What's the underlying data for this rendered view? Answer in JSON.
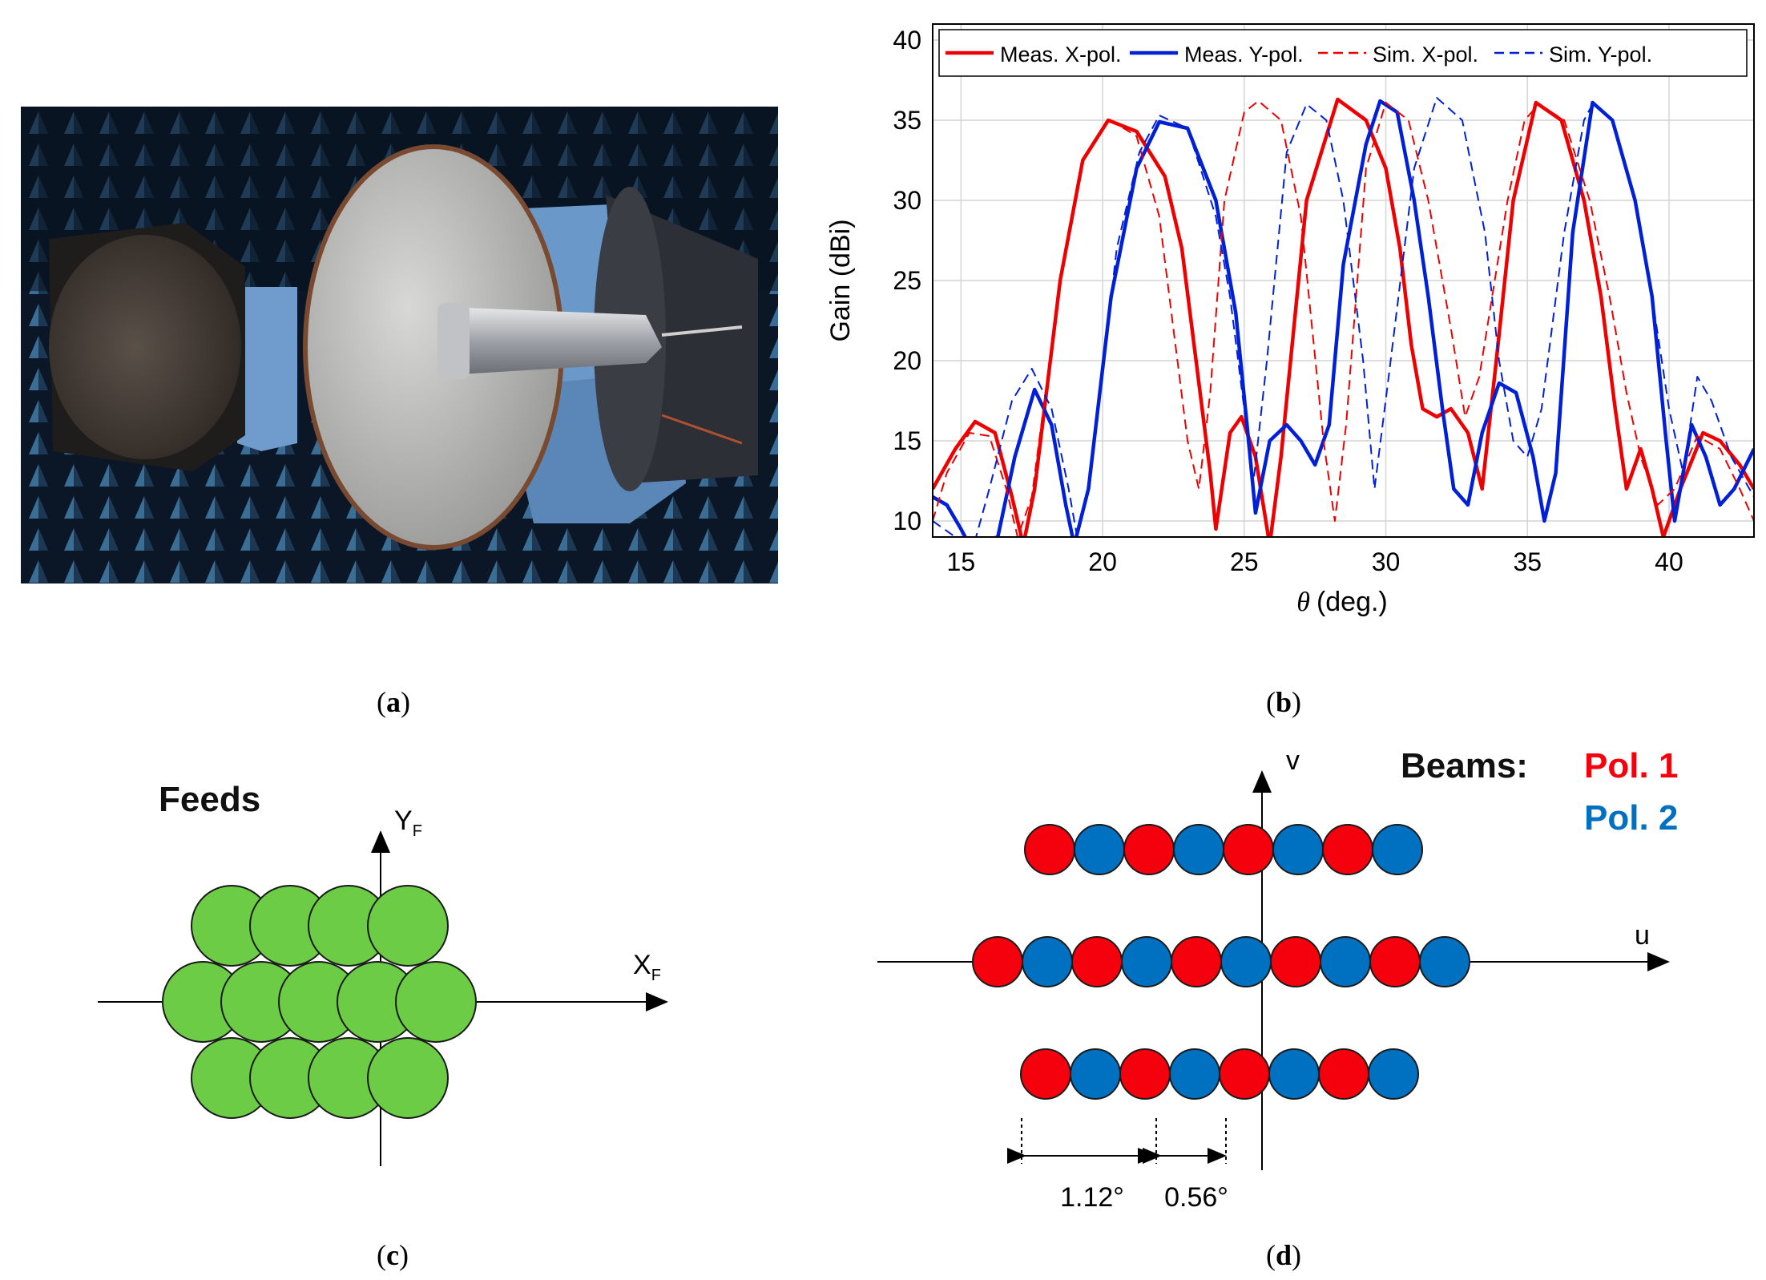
{
  "captions": {
    "a": "a",
    "b": "b",
    "c": "c",
    "d": "d"
  },
  "panel_c": {
    "title": "Feeds",
    "x_axis": "X",
    "x_sub": "F",
    "y_axis": "Y",
    "y_sub": "F",
    "feed_color": "#6dcc46"
  },
  "panel_d": {
    "legend_title": "Beams:",
    "pol1_label": "Pol. 1",
    "pol2_label": "Pol. 2",
    "u_axis": "u",
    "v_axis": "v",
    "spacing_1": "1.12°",
    "spacing_2": "0.56°",
    "pol1_color": "#f5000d",
    "pol2_color": "#0070c0"
  },
  "chart_data": {
    "type": "line",
    "xlabel_symbol": "θ",
    "xlabel_unit": "(deg.)",
    "ylabel": "Gain (dBi)",
    "xlim": [
      14,
      43
    ],
    "ylim": [
      9,
      41
    ],
    "xticks": [
      15,
      20,
      25,
      30,
      35,
      40
    ],
    "yticks": [
      10,
      15,
      20,
      25,
      30,
      35,
      40
    ],
    "grid": true,
    "legend_position": "top",
    "series": [
      {
        "name": "Meas. X-pol.",
        "color": "#ee0000",
        "style": "solid",
        "points": [
          [
            14,
            12
          ],
          [
            14.8,
            14.5
          ],
          [
            15.5,
            16.2
          ],
          [
            16.2,
            15.5
          ],
          [
            16.8,
            11.5
          ],
          [
            17.2,
            8.5
          ],
          [
            17.6,
            12
          ],
          [
            18.5,
            25
          ],
          [
            19.3,
            32.5
          ],
          [
            20.2,
            35
          ],
          [
            21.2,
            34.3
          ],
          [
            22.2,
            31.5
          ],
          [
            22.8,
            27
          ],
          [
            23.3,
            20
          ],
          [
            23.8,
            13
          ],
          [
            24.0,
            9.5
          ],
          [
            24.5,
            15.5
          ],
          [
            24.9,
            16.5
          ],
          [
            25.4,
            14
          ],
          [
            25.9,
            8.5
          ],
          [
            26.3,
            14
          ],
          [
            27.2,
            30
          ],
          [
            28.3,
            36.3
          ],
          [
            29.3,
            35
          ],
          [
            30.0,
            32
          ],
          [
            30.5,
            27
          ],
          [
            30.9,
            21
          ],
          [
            31.3,
            17
          ],
          [
            31.8,
            16.5
          ],
          [
            32.3,
            17
          ],
          [
            32.9,
            15.5
          ],
          [
            33.4,
            12
          ],
          [
            33.9,
            20
          ],
          [
            34.5,
            30
          ],
          [
            35.3,
            36.1
          ],
          [
            36.2,
            35
          ],
          [
            37.0,
            30
          ],
          [
            37.6,
            24
          ],
          [
            38.1,
            17
          ],
          [
            38.5,
            12
          ],
          [
            39.0,
            14.5
          ],
          [
            39.4,
            12
          ],
          [
            39.8,
            9
          ],
          [
            40.4,
            12
          ],
          [
            41.2,
            15.5
          ],
          [
            41.8,
            15
          ],
          [
            42.5,
            13.5
          ],
          [
            43,
            12
          ]
        ]
      },
      {
        "name": "Meas. Y-pol.",
        "color": "#0020d8",
        "style": "solid",
        "points": [
          [
            14,
            11.5
          ],
          [
            14.5,
            11
          ],
          [
            15,
            9.5
          ],
          [
            15.3,
            8.5
          ],
          [
            16.3,
            9
          ],
          [
            16.9,
            14
          ],
          [
            17.6,
            18.2
          ],
          [
            18.2,
            16
          ],
          [
            18.7,
            11
          ],
          [
            19,
            8.5
          ],
          [
            19.5,
            12
          ],
          [
            20.3,
            24
          ],
          [
            21.2,
            32
          ],
          [
            22.0,
            34.9
          ],
          [
            23.0,
            34.5
          ],
          [
            24.0,
            30
          ],
          [
            24.7,
            23
          ],
          [
            25.1,
            16
          ],
          [
            25.4,
            10.5
          ],
          [
            25.9,
            15
          ],
          [
            26.5,
            16
          ],
          [
            27.0,
            15
          ],
          [
            27.5,
            13.5
          ],
          [
            28.0,
            16
          ],
          [
            28.5,
            26
          ],
          [
            29.3,
            33.5
          ],
          [
            29.8,
            36.2
          ],
          [
            30.4,
            35.5
          ],
          [
            31.0,
            30
          ],
          [
            31.5,
            24
          ],
          [
            32.0,
            17
          ],
          [
            32.4,
            12
          ],
          [
            32.9,
            11
          ],
          [
            33.4,
            15.5
          ],
          [
            34.0,
            18.6
          ],
          [
            34.6,
            18
          ],
          [
            35.2,
            14
          ],
          [
            35.6,
            10
          ],
          [
            36.0,
            13
          ],
          [
            36.6,
            28
          ],
          [
            37.3,
            36.1
          ],
          [
            38.0,
            35
          ],
          [
            38.8,
            30
          ],
          [
            39.4,
            24
          ],
          [
            39.9,
            15
          ],
          [
            40.2,
            10
          ],
          [
            40.8,
            16
          ],
          [
            41.3,
            14
          ],
          [
            41.8,
            11
          ],
          [
            42.3,
            12
          ],
          [
            43,
            14.5
          ]
        ]
      },
      {
        "name": "Sim. X-pol.",
        "color": "#ee0000",
        "style": "dashed",
        "points": [
          [
            14,
            10
          ],
          [
            14.5,
            13
          ],
          [
            15.3,
            15.5
          ],
          [
            16,
            15.3
          ],
          [
            16.6,
            12
          ],
          [
            17,
            9
          ],
          [
            17.5,
            11.5
          ],
          [
            18.5,
            25
          ],
          [
            19.3,
            32.5
          ],
          [
            20.2,
            35.1
          ],
          [
            21.2,
            34
          ],
          [
            22,
            29
          ],
          [
            22.5,
            22
          ],
          [
            23,
            15
          ],
          [
            23.4,
            12
          ],
          [
            23.8,
            18
          ],
          [
            24.3,
            30
          ],
          [
            25,
            35.5
          ],
          [
            25.5,
            36.2
          ],
          [
            26.3,
            35
          ],
          [
            27,
            29
          ],
          [
            27.4,
            22
          ],
          [
            27.8,
            15
          ],
          [
            28.2,
            10
          ],
          [
            28.6,
            16
          ],
          [
            29.3,
            32
          ],
          [
            30.0,
            36.1
          ],
          [
            30.8,
            35
          ],
          [
            31.5,
            30
          ],
          [
            32.3,
            22
          ],
          [
            32.8,
            16.5
          ],
          [
            33.3,
            19
          ],
          [
            34.3,
            30
          ],
          [
            34.9,
            35
          ],
          [
            35.4,
            36
          ],
          [
            36.3,
            35
          ],
          [
            37.2,
            30
          ],
          [
            37.9,
            24
          ],
          [
            38.5,
            18
          ],
          [
            39.0,
            14
          ],
          [
            39.6,
            11
          ],
          [
            40.2,
            12
          ],
          [
            41.0,
            15.3
          ],
          [
            41.8,
            14.5
          ],
          [
            42.5,
            12
          ],
          [
            43,
            10
          ]
        ]
      },
      {
        "name": "Sim. Y-pol.",
        "color": "#0020d8",
        "style": "dashed",
        "points": [
          [
            14,
            10
          ],
          [
            14.8,
            9
          ],
          [
            15.5,
            8.8
          ],
          [
            16,
            12
          ],
          [
            16.8,
            17.5
          ],
          [
            17.5,
            19.5
          ],
          [
            18.2,
            17
          ],
          [
            18.8,
            12
          ],
          [
            19.1,
            9
          ],
          [
            19.6,
            13
          ],
          [
            20.5,
            27
          ],
          [
            21.3,
            33
          ],
          [
            22.0,
            35.3
          ],
          [
            23,
            34.5
          ],
          [
            24,
            29
          ],
          [
            24.5,
            24
          ],
          [
            25,
            17
          ],
          [
            25.3,
            12
          ],
          [
            25.8,
            20
          ],
          [
            26.5,
            33
          ],
          [
            27.2,
            36
          ],
          [
            27.9,
            35
          ],
          [
            28.5,
            30
          ],
          [
            29.2,
            20
          ],
          [
            29.6,
            12
          ],
          [
            30.1,
            19
          ],
          [
            31.0,
            32
          ],
          [
            31.8,
            36.4
          ],
          [
            32.7,
            35
          ],
          [
            33.5,
            28
          ],
          [
            34.0,
            20
          ],
          [
            34.5,
            15
          ],
          [
            35.0,
            14
          ],
          [
            35.5,
            17
          ],
          [
            36.3,
            28
          ],
          [
            37.0,
            35
          ],
          [
            37.3,
            36
          ],
          [
            38,
            35
          ],
          [
            38.8,
            30
          ],
          [
            39.4,
            24
          ],
          [
            40.0,
            17
          ],
          [
            40.5,
            13
          ],
          [
            41.0,
            19
          ],
          [
            41.5,
            17.5
          ],
          [
            42.2,
            14
          ],
          [
            43,
            11.5
          ]
        ]
      }
    ]
  }
}
